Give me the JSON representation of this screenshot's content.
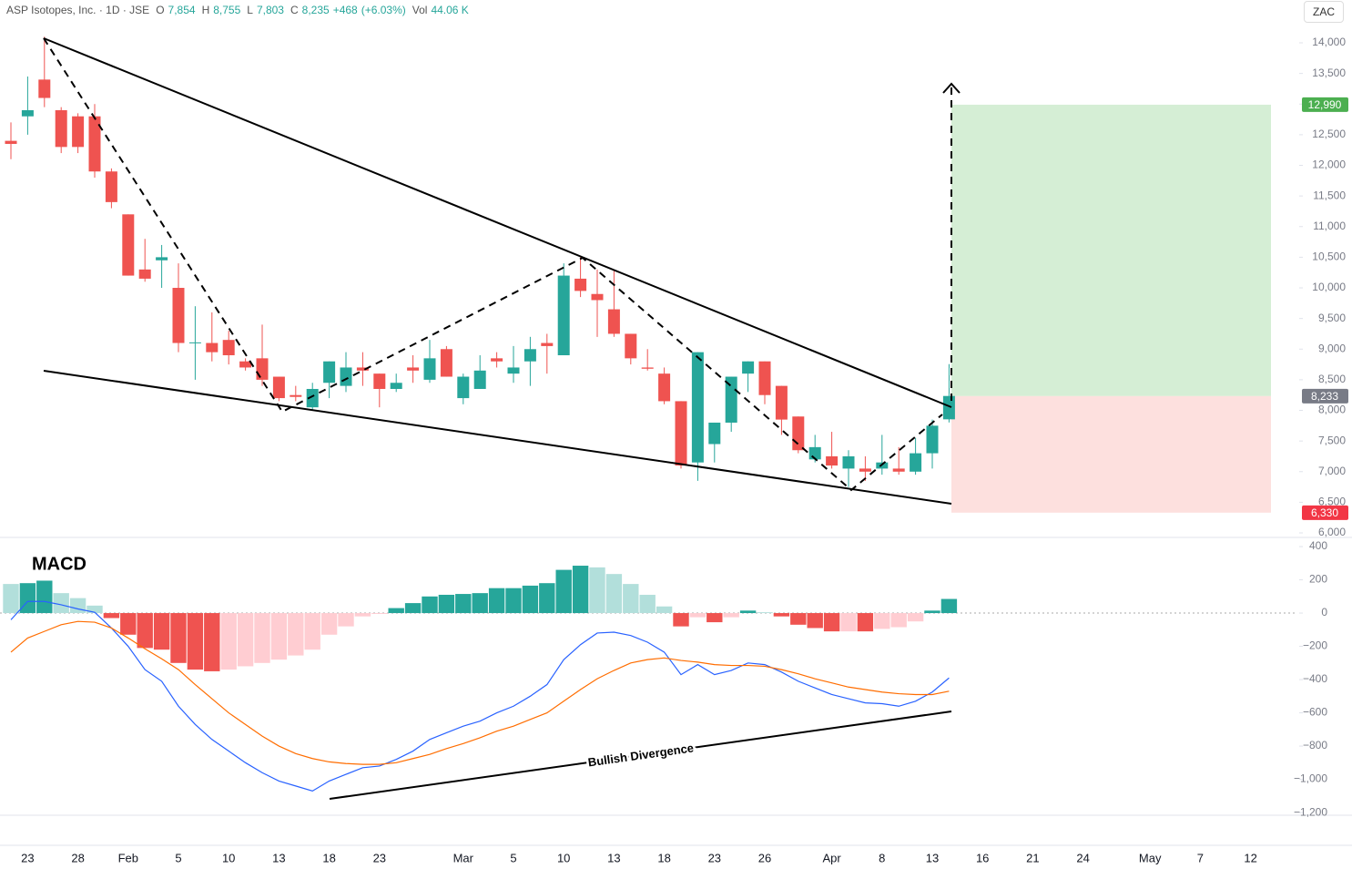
{
  "currency_button": "ZAC",
  "chart_data": [
    {
      "type": "candlestick",
      "title": "ASP Isotopes, Inc. · 1D · JSE",
      "ohlc_header": [
        {
          "key": "O",
          "value": 7854,
          "label": "7,854"
        },
        {
          "key": "H",
          "value": 8755,
          "label": "8,755"
        },
        {
          "key": "L",
          "value": 7803,
          "label": "7,803"
        },
        {
          "key": "C",
          "value": 8235,
          "label": "8,235"
        }
      ],
      "change": {
        "value": 468,
        "label": "+468"
      },
      "change_percent": {
        "value": 6.03,
        "label": "(+6.03%)"
      },
      "volume": {
        "key": "Vol",
        "value": 44060,
        "label": "44.06 K"
      },
      "categories": [
        null,
        "23",
        null,
        null,
        "28",
        null,
        null,
        "Feb",
        null,
        null,
        "5",
        null,
        null,
        "10",
        null,
        null,
        "13",
        null,
        null,
        "18",
        null,
        null,
        "23",
        null,
        null,
        null,
        null,
        "Mar",
        null,
        null,
        "5",
        null,
        null,
        "10",
        null,
        null,
        "13",
        null,
        null,
        "18",
        null,
        null,
        "23",
        null,
        null,
        "26",
        null,
        null,
        null,
        "Apr",
        null,
        null,
        "8",
        null,
        null,
        "13",
        null,
        null,
        "16",
        null,
        null,
        "21",
        null,
        null,
        "24",
        null,
        null,
        null,
        "May",
        null,
        null,
        "7",
        null,
        null,
        "12"
      ],
      "open": [
        12400,
        12800,
        13400,
        12900,
        12800,
        12800,
        11900,
        11200,
        10300,
        10450,
        10000,
        9100,
        9100,
        9150,
        8800,
        8850,
        8550,
        8250,
        8050,
        8450,
        8400,
        8700,
        8600,
        8350,
        8700,
        8500,
        9000,
        8200,
        8350,
        8850,
        8600,
        8800,
        9100,
        8900,
        10150,
        9900,
        9650,
        9250,
        8700,
        8600,
        8150,
        7150,
        7450,
        7800,
        8600,
        8800,
        8400,
        7900,
        7200,
        7250,
        7050,
        7050,
        7050,
        7050,
        7000,
        7300,
        7854,
        null,
        null,
        null,
        null,
        null,
        null,
        null,
        null,
        null,
        null,
        null,
        null,
        null,
        null,
        null,
        null,
        null,
        null
      ],
      "high": [
        12700,
        13450,
        14100,
        12950,
        12850,
        13000,
        11950,
        11200,
        10800,
        10700,
        10400,
        9700,
        9600,
        9300,
        8850,
        9400,
        8550,
        8400,
        8450,
        8800,
        8950,
        8950,
        8600,
        8600,
        8900,
        9150,
        9050,
        8600,
        8900,
        8950,
        9050,
        9200,
        9250,
        10400,
        10500,
        10300,
        10300,
        9250,
        9000,
        8700,
        8150,
        8950,
        7800,
        8550,
        8800,
        8800,
        8400,
        7900,
        7600,
        7650,
        7350,
        7250,
        7600,
        7400,
        7550,
        7850,
        8755,
        null,
        null,
        null,
        null,
        null,
        null,
        null,
        null,
        null,
        null,
        null,
        null,
        null,
        null,
        null,
        null,
        null,
        null
      ],
      "low": [
        12100,
        12500,
        12950,
        12200,
        12200,
        11800,
        11300,
        10200,
        10100,
        10000,
        8950,
        8500,
        8800,
        8750,
        8650,
        8400,
        8150,
        8150,
        8000,
        8200,
        8300,
        8400,
        8050,
        8300,
        8450,
        8450,
        8550,
        8100,
        8350,
        8700,
        8450,
        8400,
        8600,
        8900,
        9850,
        9200,
        9200,
        8750,
        8650,
        8100,
        7050,
        6850,
        7150,
        7650,
        8300,
        8100,
        7600,
        7300,
        7150,
        7050,
        6750,
        6850,
        6950,
        6950,
        6950,
        7050,
        7803,
        null,
        null,
        null,
        null,
        null,
        null,
        null,
        null,
        null,
        null,
        null,
        null,
        null,
        null,
        null,
        null,
        null,
        null
      ],
      "close": [
        12350,
        12900,
        13100,
        12300,
        12300,
        11900,
        11400,
        10200,
        10150,
        10500,
        9100,
        9110,
        8950,
        8900,
        8700,
        8500,
        8200,
        8220,
        8350,
        8800,
        8700,
        8650,
        8350,
        8450,
        8650,
        8850,
        8550,
        8550,
        8650,
        8800,
        8700,
        9000,
        9050,
        10200,
        9950,
        9800,
        9250,
        8850,
        8680,
        8150,
        7100,
        8950,
        7800,
        8550,
        8800,
        8250,
        7850,
        7350,
        7400,
        7100,
        7250,
        7000,
        7150,
        7000,
        7300,
        7750,
        8235,
        null,
        null,
        null,
        null,
        null,
        null,
        null,
        null,
        null,
        null,
        null,
        null,
        null,
        null,
        null,
        null,
        null,
        null
      ],
      "up_color": "#26a69a",
      "down_color": "#ef5350",
      "ylim": [
        5926,
        14699
      ],
      "yticks": [
        {
          "value": 14000,
          "label": "14,000"
        },
        {
          "value": 13500,
          "label": "13,500"
        },
        {
          "value": 13000,
          "label": "13,000"
        },
        {
          "value": 12500,
          "label": "12,500"
        },
        {
          "value": 12000,
          "label": "12,000"
        },
        {
          "value": 11500,
          "label": "11,500"
        },
        {
          "value": 11000,
          "label": "11,000"
        },
        {
          "value": 10500,
          "label": "10,500"
        },
        {
          "value": 10000,
          "label": "10,000"
        },
        {
          "value": 9500,
          "label": "9,500"
        },
        {
          "value": 9000,
          "label": "9,000"
        },
        {
          "value": 8500,
          "label": "8,500"
        },
        {
          "value": 8000,
          "label": "8,000"
        },
        {
          "value": 7500,
          "label": "7,500"
        },
        {
          "value": 7000,
          "label": "7,000"
        },
        {
          "value": 6500,
          "label": "6,500"
        },
        {
          "value": 6000,
          "label": "6,000"
        }
      ],
      "position": {
        "target": {
          "value": 12990,
          "label": "12,990"
        },
        "entry": {
          "value": 8233,
          "label": "8,233"
        },
        "stop": {
          "value": 6330,
          "label": "6,330"
        }
      }
    },
    {
      "type": "macd",
      "title": "MACD",
      "annotation": "Bullish Divergence",
      "ylim": [
        -1216,
        455
      ],
      "yticks": [
        400,
        200,
        0,
        {
          "value": -200,
          "label": "−200"
        },
        {
          "value": -400,
          "label": "−400"
        },
        {
          "value": -600,
          "label": "−600"
        },
        {
          "value": -800,
          "label": "−800"
        },
        {
          "value": -1000,
          "label": "−1,000"
        },
        {
          "value": -1200,
          "label": "−1,200"
        }
      ],
      "histogram": {
        "values": [
          175,
          180,
          195,
          120,
          90,
          45,
          -30,
          -130,
          -210,
          -220,
          -300,
          -340,
          -350,
          -340,
          -320,
          -300,
          -280,
          -255,
          -220,
          -130,
          -80,
          -20,
          -5,
          30,
          60,
          100,
          110,
          115,
          120,
          150,
          150,
          165,
          180,
          260,
          285,
          275,
          235,
          175,
          110,
          40,
          -80,
          -25,
          -55,
          -25,
          15,
          5,
          -20,
          -70,
          -90,
          -110,
          -110,
          -110,
          -95,
          -85,
          -50,
          15,
          85
        ],
        "colors": [
          "#b2dfdb",
          "#26a69a",
          "#26a69a",
          "#b2dfdb",
          "#b2dfdb",
          "#b2dfdb",
          "#ef5350",
          "#ef5350",
          "#ef5350",
          "#ef5350",
          "#ef5350",
          "#ef5350",
          "#ef5350",
          "#ffcdd2",
          "#ffcdd2",
          "#ffcdd2",
          "#ffcdd2",
          "#ffcdd2",
          "#ffcdd2",
          "#ffcdd2",
          "#ffcdd2",
          "#ffcdd2",
          "#ffcdd2",
          "#26a69a",
          "#26a69a",
          "#26a69a",
          "#26a69a",
          "#26a69a",
          "#26a69a",
          "#26a69a",
          "#26a69a",
          "#26a69a",
          "#26a69a",
          "#26a69a",
          "#26a69a",
          "#b2dfdb",
          "#b2dfdb",
          "#b2dfdb",
          "#b2dfdb",
          "#b2dfdb",
          "#ef5350",
          "#ffcdd2",
          "#ef5350",
          "#ffcdd2",
          "#26a69a",
          "#b2dfdb",
          "#ef5350",
          "#ef5350",
          "#ef5350",
          "#ef5350",
          "#ffcdd2",
          "#ef5350",
          "#ffcdd2",
          "#ffcdd2",
          "#ffcdd2",
          "#26a69a",
          "#26a69a"
        ]
      },
      "series": [
        {
          "color": "#2962ff",
          "values": [
            -40,
            70,
            70,
            50,
            25,
            5,
            -90,
            -200,
            -340,
            -410,
            -560,
            -670,
            -760,
            -830,
            -900,
            -960,
            -1010,
            -1040,
            -1070,
            -1010,
            -970,
            -930,
            -920,
            -880,
            -830,
            -760,
            -720,
            -680,
            -650,
            -600,
            -560,
            -500,
            -430,
            -280,
            -190,
            -120,
            -115,
            -135,
            -175,
            -235,
            -370,
            -310,
            -370,
            -345,
            -300,
            -310,
            -355,
            -410,
            -450,
            -490,
            -515,
            -540,
            -545,
            -560,
            -530,
            -475,
            -390
          ]
        },
        {
          "color": "#ff6d00",
          "values": [
            -235,
            -150,
            -110,
            -70,
            -50,
            -55,
            -90,
            -150,
            -215,
            -275,
            -340,
            -430,
            -515,
            -600,
            -670,
            -740,
            -800,
            -845,
            -875,
            -895,
            -905,
            -910,
            -910,
            -900,
            -875,
            -850,
            -815,
            -785,
            -750,
            -710,
            -680,
            -640,
            -600,
            -530,
            -460,
            -395,
            -345,
            -300,
            -280,
            -270,
            -285,
            -295,
            -310,
            -315,
            -315,
            -320,
            -340,
            -365,
            -395,
            -420,
            -445,
            -460,
            -475,
            -485,
            -490,
            -490,
            -470
          ]
        }
      ]
    }
  ]
}
